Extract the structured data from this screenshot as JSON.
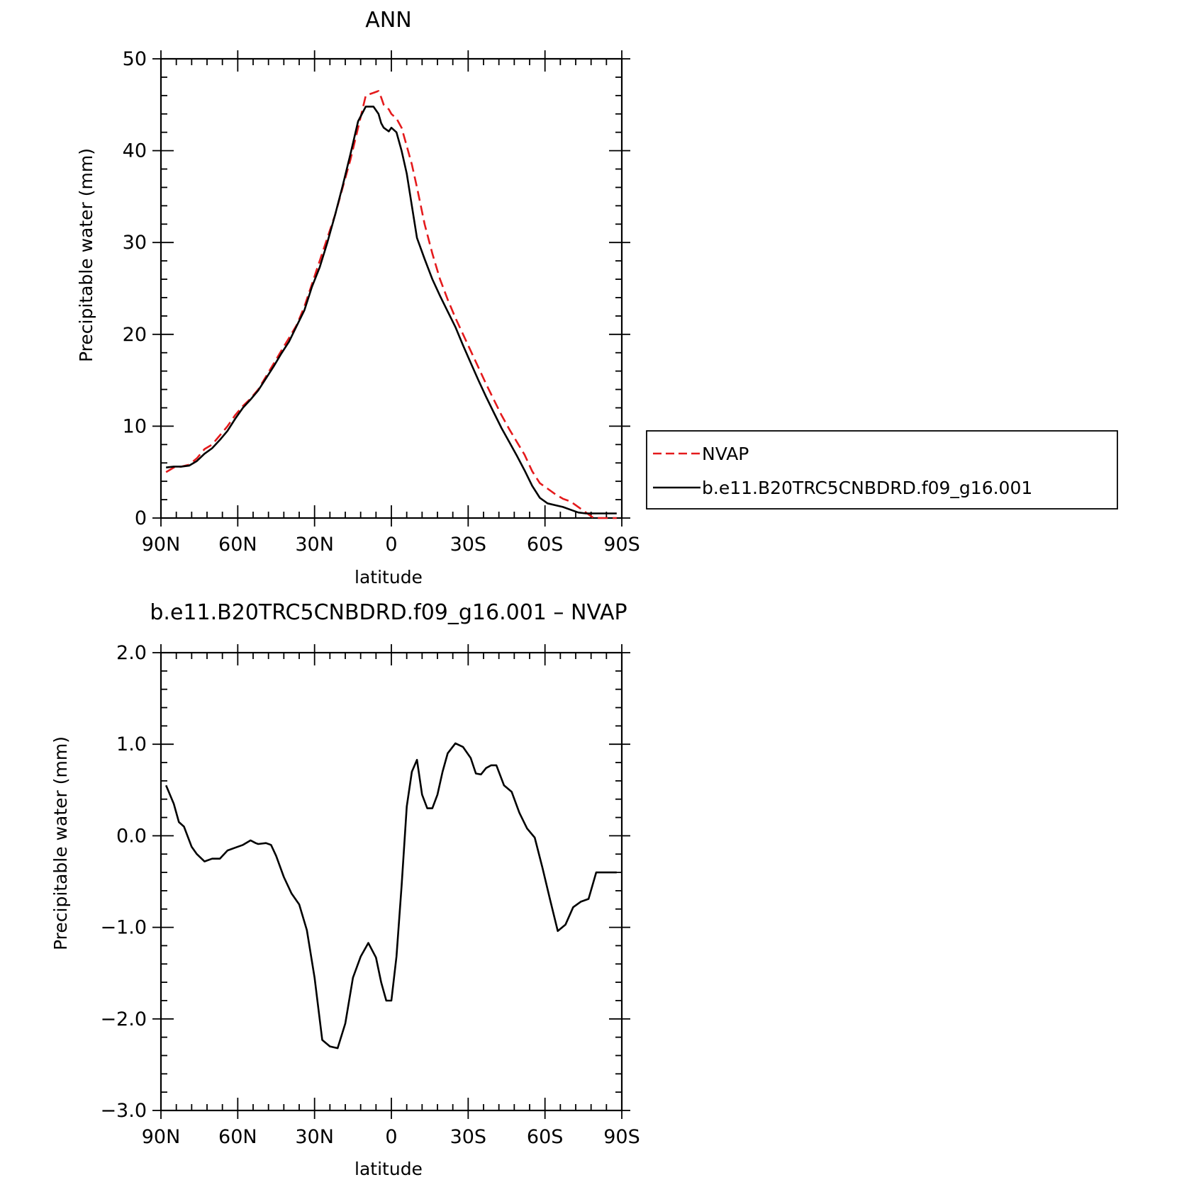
{
  "chart_data": [
    {
      "type": "line",
      "title": "ANN",
      "xlabel": "latitude",
      "ylabel": "Precipitable water (mm)",
      "xlim": [
        -90,
        90
      ],
      "ylim": [
        0,
        50
      ],
      "x_ticks": [
        -90,
        -60,
        -30,
        0,
        30,
        60,
        90
      ],
      "x_tick_labels": [
        "90N",
        "60N",
        "30N",
        "0",
        "30S",
        "60S",
        "90S"
      ],
      "y_ticks": [
        0,
        10,
        20,
        30,
        40,
        50
      ],
      "y_tick_labels": [
        "0",
        "10",
        "20",
        "30",
        "40",
        "50"
      ],
      "legend": "right",
      "series": [
        {
          "name": "NVAP",
          "color": "#e41a1c",
          "dash": "dashed",
          "x": [
            -88,
            -85,
            -82,
            -79,
            -76,
            -73,
            -70,
            -67,
            -64,
            -61,
            -58,
            -55,
            -52,
            -49,
            -46,
            -43,
            -40,
            -37,
            -34,
            -31,
            -28,
            -25,
            -22,
            -19,
            -16,
            -13,
            -10,
            -7,
            -5,
            -4,
            -3,
            -1,
            0,
            2,
            4,
            6,
            8,
            10,
            13,
            16,
            19,
            22,
            25,
            28,
            31,
            34,
            37,
            40,
            43,
            46,
            49,
            52,
            55,
            58,
            61,
            64,
            67,
            70,
            73,
            76,
            79,
            82,
            85,
            88
          ],
          "y": [
            5.0,
            5.5,
            5.6,
            5.8,
            6.5,
            7.5,
            8.0,
            9.0,
            10.0,
            11.2,
            12.2,
            13.0,
            14.0,
            15.4,
            16.8,
            18.2,
            19.6,
            21.0,
            23.0,
            25.5,
            28.0,
            30.5,
            33.0,
            36.0,
            39.0,
            42.5,
            46.0,
            46.3,
            46.5,
            45.8,
            45.0,
            44.5,
            44.0,
            43.5,
            42.5,
            40.5,
            38.5,
            36.0,
            32.0,
            28.8,
            26.0,
            23.8,
            21.8,
            20.0,
            18.2,
            16.4,
            14.6,
            12.9,
            11.2,
            9.7,
            8.3,
            6.9,
            5.1,
            3.8,
            3.2,
            2.6,
            2.1,
            1.8,
            1.2,
            0.6,
            0.0,
            0.0,
            0.0,
            0.0
          ]
        },
        {
          "name": "b.e11.B20TRC5CNBDRD.f09_g16.001",
          "color": "#000000",
          "dash": "solid",
          "x": [
            -88,
            -85,
            -82,
            -79,
            -76,
            -73,
            -70,
            -67,
            -64,
            -61,
            -58,
            -55,
            -52,
            -49,
            -46,
            -43,
            -40,
            -37,
            -34,
            -31,
            -28,
            -25,
            -22,
            -19,
            -16,
            -13,
            -10,
            -7,
            -5,
            -4,
            -3,
            -1,
            0,
            2,
            4,
            6,
            8,
            10,
            13,
            16,
            19,
            22,
            25,
            28,
            31,
            34,
            37,
            40,
            43,
            46,
            49,
            52,
            55,
            58,
            61,
            64,
            67,
            70,
            73,
            76,
            79,
            82,
            85,
            88
          ],
          "y": [
            5.5,
            5.6,
            5.6,
            5.7,
            6.2,
            7.0,
            7.6,
            8.5,
            9.5,
            10.8,
            12.0,
            12.9,
            13.9,
            15.2,
            16.5,
            17.9,
            19.2,
            20.9,
            22.6,
            25.2,
            27.3,
            30.0,
            33.0,
            36.2,
            39.6,
            43.2,
            44.8,
            44.8,
            44.0,
            43.0,
            42.5,
            42.1,
            42.5,
            42.0,
            40.0,
            37.5,
            34.0,
            30.5,
            28.2,
            26.0,
            24.2,
            22.5,
            20.8,
            18.8,
            16.9,
            15.0,
            13.2,
            11.5,
            9.8,
            8.3,
            6.8,
            5.2,
            3.5,
            2.2,
            1.6,
            1.4,
            1.2,
            0.9,
            0.6,
            0.5,
            0.5,
            0.5,
            0.5,
            0.5
          ]
        }
      ]
    },
    {
      "type": "line",
      "title": "b.e11.B20TRC5CNBDRD.f09_g16.001 – NVAP",
      "xlabel": "latitude",
      "ylabel": "Precipitable water (mm)",
      "xlim": [
        -90,
        90
      ],
      "ylim": [
        -3.0,
        2.0
      ],
      "x_ticks": [
        -90,
        -60,
        -30,
        0,
        30,
        60,
        90
      ],
      "x_tick_labels": [
        "90N",
        "60N",
        "30N",
        "0",
        "30S",
        "60S",
        "90S"
      ],
      "y_ticks": [
        -3.0,
        -2.0,
        -1.0,
        0.0,
        1.0,
        2.0
      ],
      "y_tick_labels": [
        "−3.0",
        "−2.0",
        "−1.0",
        "0.0",
        "1.0",
        "2.0"
      ],
      "series": [
        {
          "color": "#000000",
          "dash": "solid",
          "x": [
            -88,
            -85,
            -83,
            -81,
            -78,
            -76,
            -73,
            -70,
            -67,
            -64,
            -61,
            -58,
            -55,
            -53,
            -52,
            -49,
            -47,
            -45,
            -42,
            -39,
            -36,
            -33,
            -30,
            -27,
            -24,
            -21,
            -18,
            -15,
            -12,
            -9,
            -6,
            -4,
            -2,
            0,
            2,
            4,
            6,
            8,
            10,
            12,
            14,
            16,
            18,
            20,
            22,
            25,
            28,
            31,
            33,
            35,
            37,
            39,
            41,
            44,
            47,
            50,
            53,
            56,
            59,
            62,
            65,
            68,
            71,
            74,
            77,
            80,
            82,
            84,
            86,
            88
          ],
          "y": [
            0.55,
            0.35,
            0.15,
            0.1,
            -0.12,
            -0.2,
            -0.28,
            -0.25,
            -0.25,
            -0.16,
            -0.13,
            -0.1,
            -0.05,
            -0.08,
            -0.09,
            -0.08,
            -0.1,
            -0.22,
            -0.45,
            -0.63,
            -0.75,
            -1.03,
            -1.55,
            -2.23,
            -2.3,
            -2.32,
            -2.05,
            -1.55,
            -1.32,
            -1.17,
            -1.33,
            -1.6,
            -1.8,
            -1.8,
            -1.32,
            -0.55,
            0.32,
            0.7,
            0.83,
            0.45,
            0.3,
            0.3,
            0.45,
            0.7,
            0.9,
            1.01,
            0.97,
            0.85,
            0.68,
            0.67,
            0.74,
            0.77,
            0.77,
            0.55,
            0.48,
            0.25,
            0.08,
            -0.02,
            -0.35,
            -0.7,
            -1.04,
            -0.97,
            -0.78,
            -0.72,
            -0.69,
            -0.4,
            -0.4,
            -0.4,
            -0.4,
            -0.4
          ]
        }
      ]
    }
  ]
}
